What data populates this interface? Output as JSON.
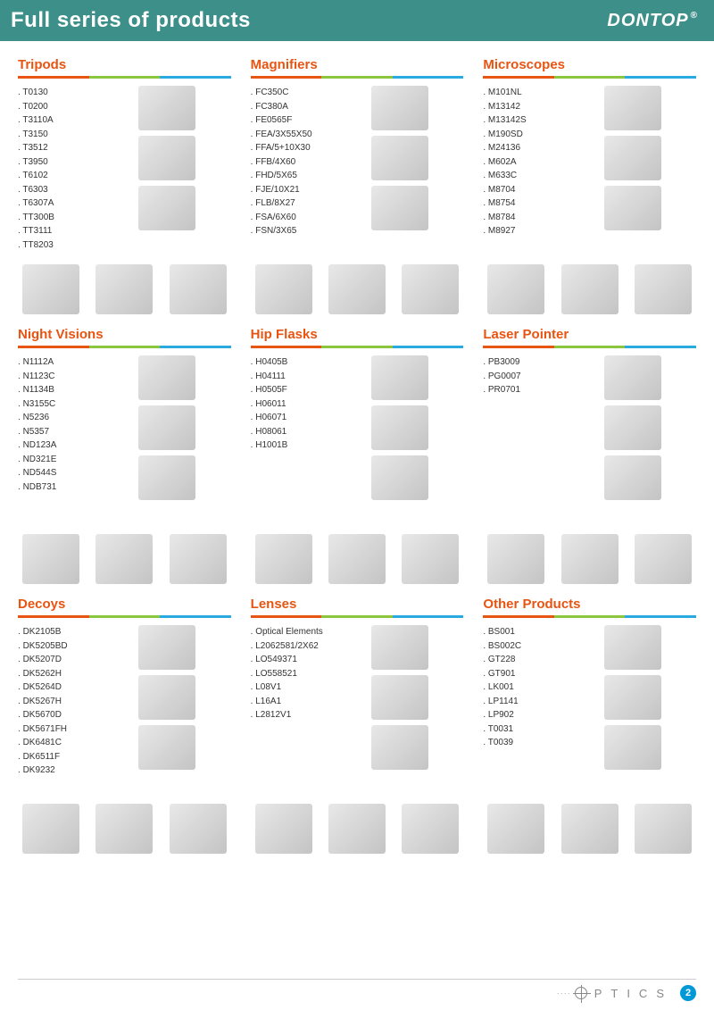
{
  "header": {
    "title": "Full series of products",
    "brand": "DONTOP",
    "brand_mark": "®"
  },
  "colors": {
    "accent": "#e85412",
    "bar_red": "#e85412",
    "bar_green": "#8cc63f",
    "bar_blue": "#29abe2",
    "header_bg": "#3d8f8a",
    "page_badge": "#0099d8"
  },
  "categories": [
    {
      "title": "Tripods",
      "items": [
        "T0130",
        "T0200",
        "T3110A",
        "T3150",
        "T3512",
        "T3950",
        "T6102",
        "T6303",
        "T6307A",
        "TT300B",
        "TT3111",
        "TT8203"
      ],
      "side_img_count": 3,
      "bottom_img_count": 3
    },
    {
      "title": "Magnifiers",
      "items": [
        "FC350C",
        "FC380A",
        "FE0565F",
        "FEA/3X55X50",
        "FFA/5+10X30",
        "FFB/4X60",
        "FHD/5X65",
        "FJE/10X21",
        "FLB/8X27",
        "FSA/6X60",
        "FSN/3X65"
      ],
      "side_img_count": 3,
      "bottom_img_count": 3
    },
    {
      "title": "Microscopes",
      "items": [
        "M101NL",
        "M13142",
        "M13142S",
        "M190SD",
        "M24136",
        "M602A",
        "M633C",
        "M8704",
        "M8754",
        "M8784",
        "M8927"
      ],
      "side_img_count": 3,
      "bottom_img_count": 3
    },
    {
      "title": "Night Visions",
      "items": [
        "N1112A",
        "N1123C",
        "N1134B",
        "N3155C",
        "N5236",
        "N5357",
        "ND123A",
        "ND321E",
        "ND544S",
        "NDB731"
      ],
      "side_img_count": 3,
      "bottom_img_count": 3
    },
    {
      "title": "Hip Flasks",
      "items": [
        "H0405B",
        "H04111",
        "H0505F",
        "H06011",
        "H06071",
        "H08061",
        "H1001B"
      ],
      "side_img_count": 3,
      "bottom_img_count": 3
    },
    {
      "title": "Laser Pointer",
      "items": [
        "PB3009",
        "PG0007",
        "PR0701"
      ],
      "side_img_count": 3,
      "bottom_img_count": 3
    },
    {
      "title": "Decoys",
      "items": [
        "DK2105B",
        "DK5205BD",
        "DK5207D",
        "DK5262H",
        "DK5264D",
        "DK5267H",
        "DK5670D",
        "DK5671FH",
        "DK6481C",
        "DK6511F",
        "DK9232"
      ],
      "side_img_count": 3,
      "bottom_img_count": 3
    },
    {
      "title": "Lenses",
      "items": [
        "Optical Elements",
        "L2062581/2X62",
        "LO549371",
        "LO558521",
        "L08V1",
        "L16A1",
        "L2812V1"
      ],
      "side_img_count": 3,
      "bottom_img_count": 3
    },
    {
      "title": "Other Products",
      "items": [
        "BS001",
        "BS002C",
        "GT228",
        "GT901",
        "LK001",
        "LP1141",
        "LP902",
        "T0031",
        "T0039"
      ],
      "side_img_count": 3,
      "bottom_img_count": 3
    }
  ],
  "footer": {
    "label": "PTICS",
    "page": "2"
  }
}
